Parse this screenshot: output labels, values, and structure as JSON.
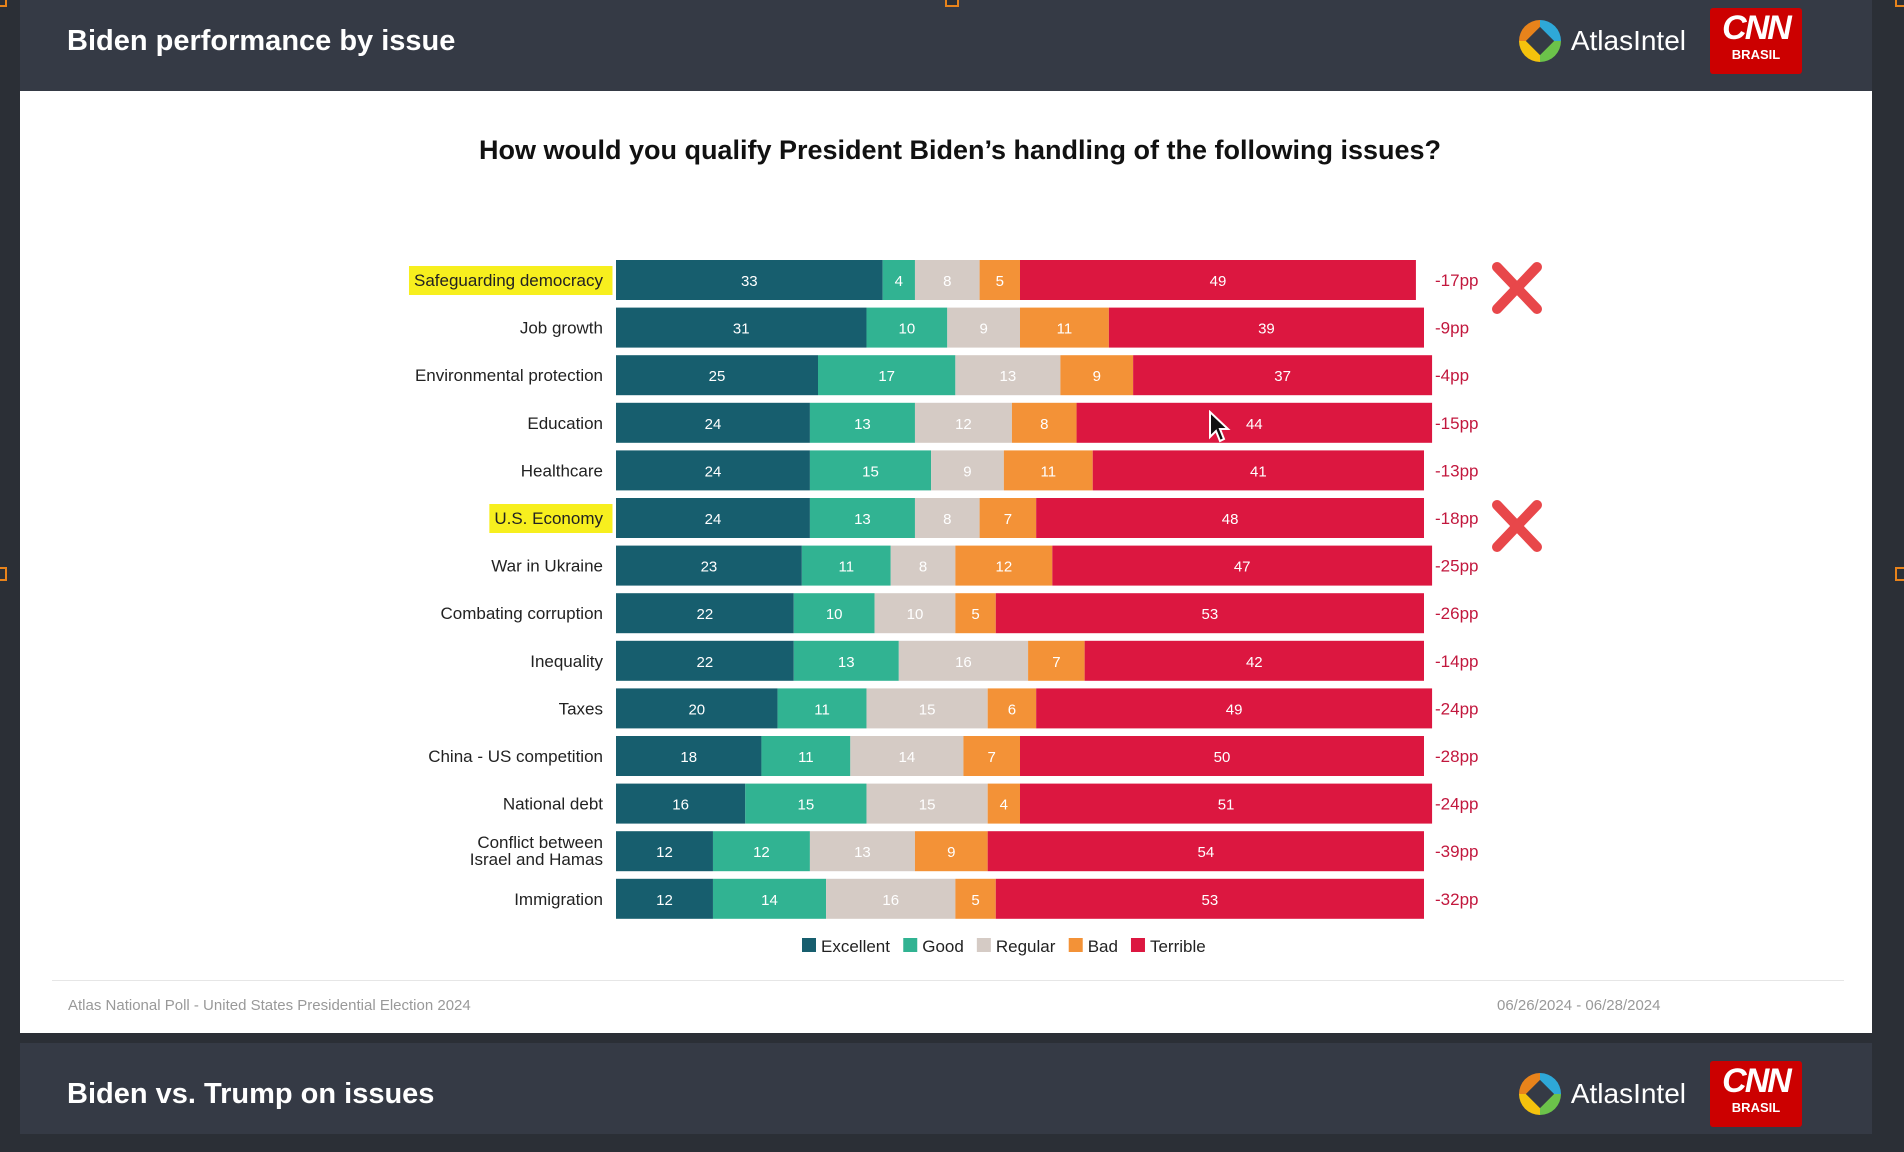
{
  "slide1": {
    "title": "Biden performance by issue"
  },
  "slide2": {
    "title": "Biden vs. Trump on issues"
  },
  "brand": {
    "atlas": "AtlasIntel",
    "cnn": "CNN",
    "cnn_sub": "BRASIL"
  },
  "footer": {
    "source": "Atlas National Poll - United States Presidential Election 2024",
    "dates": "06/26/2024 - 06/28/2024"
  },
  "colors": {
    "Excellent": "#175e6e",
    "Good": "#31b392",
    "Regular": "#d5cbc5",
    "Bad": "#f39237",
    "Terrible": "#dc1740",
    "net": "#c2173d",
    "highlight": "#f7ef1e",
    "mark": "#e8474a"
  },
  "chart_data": {
    "type": "bar",
    "orientation": "horizontal",
    "stacked": true,
    "title": "How would you qualify President Biden’s handling of the following issues?",
    "categories": [
      "Safeguarding democracy",
      "Job growth",
      "Environmental protection",
      "Education",
      "Healthcare",
      "U.S. Economy",
      "War in Ukraine",
      "Combating corruption",
      "Inequality",
      "Taxes",
      "China - US competition",
      "National debt",
      "Conflict between Israel and Hamas",
      "Immigration"
    ],
    "series": [
      {
        "name": "Excellent",
        "values": [
          33,
          31,
          25,
          24,
          24,
          24,
          23,
          22,
          22,
          20,
          18,
          16,
          12,
          12
        ]
      },
      {
        "name": "Good",
        "values": [
          4,
          10,
          17,
          13,
          15,
          13,
          11,
          10,
          13,
          11,
          11,
          15,
          12,
          14
        ]
      },
      {
        "name": "Regular",
        "values": [
          8,
          9,
          13,
          12,
          9,
          8,
          8,
          10,
          16,
          15,
          14,
          15,
          13,
          16
        ]
      },
      {
        "name": "Bad",
        "values": [
          5,
          11,
          9,
          8,
          11,
          7,
          12,
          5,
          7,
          6,
          7,
          4,
          9,
          5
        ]
      },
      {
        "name": "Terrible",
        "values": [
          49,
          39,
          37,
          44,
          41,
          48,
          47,
          53,
          42,
          49,
          50,
          51,
          54,
          53
        ]
      }
    ],
    "net": [
      "-17pp",
      "-9pp",
      "-4pp",
      "-15pp",
      "-13pp",
      "-18pp",
      "-25pp",
      "-26pp",
      "-14pp",
      "-24pp",
      "-28pp",
      "-24pp",
      "-39pp",
      "-32pp"
    ],
    "highlighted": [
      "Safeguarding democracy",
      "U.S. Economy"
    ],
    "marked": [
      "Safeguarding democracy",
      "U.S. Economy"
    ],
    "legend_position": "bottom",
    "xlim": [
      0,
      100
    ],
    "grid": false
  }
}
